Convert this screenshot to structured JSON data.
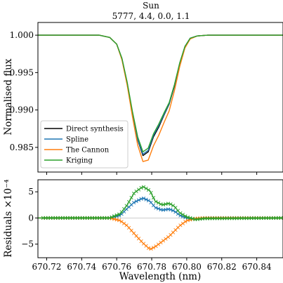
{
  "chart_data": {
    "title": "Sun",
    "subtitle": "5777, 4.4, 0.0, 1.1",
    "xlabel": "Wavelength (nm)",
    "xlim": [
      670.715,
      670.855
    ],
    "xticks": [
      670.72,
      670.74,
      670.76,
      670.78,
      670.8,
      670.82,
      670.84
    ],
    "xtick_labels": [
      "670.72",
      "670.74",
      "670.76",
      "670.78",
      "670.80",
      "670.82",
      "670.84"
    ],
    "panels": [
      {
        "type": "line",
        "ylabel": "Normalised flux",
        "ylim": [
          0.9817,
          1.0017
        ],
        "yticks": [
          0.985,
          0.99,
          0.995,
          1.0
        ],
        "ytick_labels": [
          "0.985",
          "0.990",
          "0.995",
          "1.000"
        ],
        "legend_position": "lower-left",
        "series": [
          {
            "name": "Direct synthesis",
            "color": "#000000",
            "points": [
              [
                670.715,
                1.0
              ],
              [
                670.75,
                1.0
              ],
              [
                670.756,
                0.9997
              ],
              [
                670.76,
                0.9988
              ],
              [
                670.763,
                0.9968
              ],
              [
                670.766,
                0.9935
              ],
              [
                670.769,
                0.9895
              ],
              [
                670.772,
                0.986
              ],
              [
                670.775,
                0.9839
              ],
              [
                670.778,
                0.9844
              ],
              [
                670.781,
                0.9864
              ],
              [
                670.784,
                0.9877
              ],
              [
                670.787,
                0.9893
              ],
              [
                670.79,
                0.9908
              ],
              [
                670.793,
                0.9932
              ],
              [
                670.796,
                0.9962
              ],
              [
                670.799,
                0.9985
              ],
              [
                670.802,
                0.9996
              ],
              [
                670.806,
                0.9999
              ],
              [
                670.812,
                1.0
              ],
              [
                670.855,
                1.0
              ]
            ]
          },
          {
            "name": "Spline",
            "color": "#1f77b4",
            "points": [
              [
                670.715,
                1.0
              ],
              [
                670.75,
                1.0
              ],
              [
                670.756,
                0.9997
              ],
              [
                670.76,
                0.9988
              ],
              [
                670.763,
                0.9969
              ],
              [
                670.766,
                0.9936
              ],
              [
                670.769,
                0.9896
              ],
              [
                670.772,
                0.9861
              ],
              [
                670.775,
                0.9841
              ],
              [
                670.778,
                0.9846
              ],
              [
                670.781,
                0.9866
              ],
              [
                670.784,
                0.9879
              ],
              [
                670.787,
                0.9894
              ],
              [
                670.79,
                0.9909
              ],
              [
                670.793,
                0.9933
              ],
              [
                670.796,
                0.9962
              ],
              [
                670.799,
                0.9985
              ],
              [
                670.802,
                0.9996
              ],
              [
                670.806,
                0.9999
              ],
              [
                670.812,
                1.0
              ],
              [
                670.855,
                1.0
              ]
            ]
          },
          {
            "name": "The Cannon",
            "color": "#ff7f0e",
            "points": [
              [
                670.715,
                1.0
              ],
              [
                670.75,
                1.0
              ],
              [
                670.756,
                0.9997
              ],
              [
                670.76,
                0.9988
              ],
              [
                670.763,
                0.9967
              ],
              [
                670.766,
                0.9933
              ],
              [
                670.769,
                0.9891
              ],
              [
                670.772,
                0.9853
              ],
              [
                670.775,
                0.9831
              ],
              [
                670.778,
                0.9833
              ],
              [
                670.781,
                0.9852
              ],
              [
                670.784,
                0.9866
              ],
              [
                670.787,
                0.9883
              ],
              [
                670.79,
                0.9899
              ],
              [
                670.793,
                0.9926
              ],
              [
                670.796,
                0.9958
              ],
              [
                670.799,
                0.9983
              ],
              [
                670.802,
                0.9995
              ],
              [
                670.806,
                0.9999
              ],
              [
                670.812,
                1.0
              ],
              [
                670.855,
                1.0
              ]
            ]
          },
          {
            "name": "Kriging",
            "color": "#2ca02c",
            "points": [
              [
                670.715,
                1.0
              ],
              [
                670.75,
                1.0
              ],
              [
                670.756,
                0.9997
              ],
              [
                670.76,
                0.9988
              ],
              [
                670.763,
                0.9969
              ],
              [
                670.766,
                0.9937
              ],
              [
                670.769,
                0.9898
              ],
              [
                670.772,
                0.9864
              ],
              [
                670.775,
                0.9844
              ],
              [
                670.778,
                0.9849
              ],
              [
                670.781,
                0.9868
              ],
              [
                670.784,
                0.9881
              ],
              [
                670.787,
                0.9896
              ],
              [
                670.79,
                0.991
              ],
              [
                670.793,
                0.9934
              ],
              [
                670.796,
                0.9963
              ],
              [
                670.799,
                0.9985
              ],
              [
                670.802,
                0.9996
              ],
              [
                670.806,
                0.9999
              ],
              [
                670.812,
                1.0
              ],
              [
                670.855,
                1.0
              ]
            ]
          }
        ]
      },
      {
        "type": "line",
        "ylabel": "Residuals ×10⁻⁴",
        "ylim": [
          -7.6,
          7.3
        ],
        "yticks": [
          -5,
          0,
          5
        ],
        "ytick_labels": [
          "−5",
          "0",
          "5"
        ],
        "reference_line": 0,
        "marker": "x",
        "series": [
          {
            "name": "Spline",
            "color": "#1f77b4",
            "points": [
              [
                670.715,
                0
              ],
              [
                670.756,
                0
              ],
              [
                670.762,
                0.5
              ],
              [
                670.766,
                1.8
              ],
              [
                670.77,
                3.0
              ],
              [
                670.775,
                3.8
              ],
              [
                670.779,
                3.2
              ],
              [
                670.782,
                2.0
              ],
              [
                670.786,
                1.5
              ],
              [
                670.79,
                1.7
              ],
              [
                670.793,
                1.3
              ],
              [
                670.796,
                0.5
              ],
              [
                670.8,
                0
              ],
              [
                670.805,
                -0.2
              ],
              [
                670.81,
                0
              ],
              [
                670.855,
                0
              ]
            ]
          },
          {
            "name": "The Cannon",
            "color": "#ff7f0e",
            "points": [
              [
                670.715,
                0
              ],
              [
                670.756,
                0
              ],
              [
                670.762,
                -0.5
              ],
              [
                670.766,
                -1.5
              ],
              [
                670.77,
                -3.0
              ],
              [
                670.775,
                -4.8
              ],
              [
                670.779,
                -6.0
              ],
              [
                670.782,
                -5.5
              ],
              [
                670.786,
                -4.5
              ],
              [
                670.79,
                -3.5
              ],
              [
                670.793,
                -2.5
              ],
              [
                670.796,
                -1.5
              ],
              [
                670.8,
                -0.5
              ],
              [
                670.805,
                -0.1
              ],
              [
                670.81,
                0
              ],
              [
                670.855,
                0
              ]
            ]
          },
          {
            "name": "Kriging",
            "color": "#2ca02c",
            "points": [
              [
                670.715,
                0
              ],
              [
                670.756,
                0
              ],
              [
                670.762,
                0.8
              ],
              [
                670.766,
                2.5
              ],
              [
                670.77,
                4.8
              ],
              [
                670.775,
                6.0
              ],
              [
                670.779,
                5.2
              ],
              [
                670.782,
                3.2
              ],
              [
                670.786,
                2.5
              ],
              [
                670.79,
                2.8
              ],
              [
                670.793,
                2.2
              ],
              [
                670.796,
                1.0
              ],
              [
                670.8,
                0.2
              ],
              [
                670.805,
                -0.3
              ],
              [
                670.81,
                -0.1
              ],
              [
                670.855,
                0
              ]
            ]
          }
        ]
      }
    ]
  }
}
